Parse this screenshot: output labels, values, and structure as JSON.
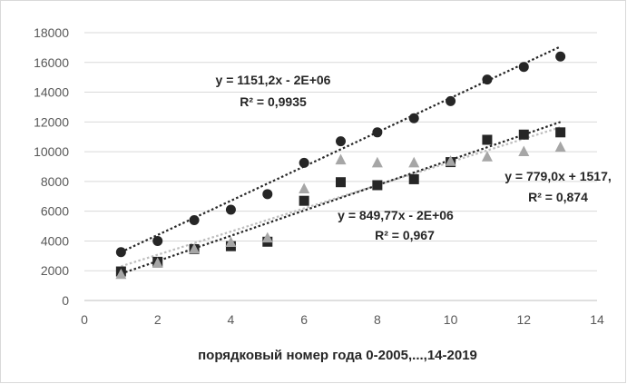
{
  "chart_data": {
    "type": "scatter",
    "title": "",
    "xlabel": "порядковый  номер года 0-2005,...,14-2019",
    "ylabel": "",
    "xlim": [
      0,
      14
    ],
    "ylim": [
      0,
      18000
    ],
    "x_ticks": [
      "0",
      "2",
      "4",
      "6",
      "8",
      "10",
      "12",
      "14"
    ],
    "y_ticks": [
      "0",
      "2000",
      "4000",
      "6000",
      "8000",
      "10000",
      "12000",
      "14000",
      "16000",
      "18000"
    ],
    "grid": "horizontal",
    "legend": "none",
    "series": [
      {
        "marker": "circle",
        "color": "#262626",
        "x": [
          1,
          2,
          3,
          4,
          5,
          6,
          7,
          8,
          9,
          10,
          11,
          12,
          13
        ],
        "y": [
          3250,
          4000,
          5400,
          6100,
          7150,
          9250,
          10700,
          11300,
          12250,
          13400,
          14850,
          15700,
          16400
        ],
        "trendline": {
          "slope": 1151.2,
          "intercept": 2100,
          "equation": "y = 1151,2x - 2E+06",
          "r2": "R² = 0,9935"
        }
      },
      {
        "marker": "square",
        "color": "#262626",
        "x": [
          1,
          2,
          3,
          4,
          5,
          6,
          7,
          8,
          9,
          10,
          11,
          12,
          13
        ],
        "y": [
          1950,
          2600,
          3450,
          3650,
          3950,
          6700,
          7950,
          7750,
          8150,
          9300,
          10800,
          11150,
          11300
        ],
        "trendline": {
          "slope": 849.77,
          "intercept": 950,
          "equation": "y = 849,77x - 2E+06",
          "r2": "R² = 0,967"
        }
      },
      {
        "marker": "triangle",
        "color": "#a6a6a6",
        "x": [
          1,
          2,
          3,
          4,
          5,
          6,
          7,
          8,
          9,
          10,
          11,
          12,
          13
        ],
        "y": [
          1750,
          2500,
          3450,
          3900,
          4200,
          7500,
          9450,
          9250,
          9250,
          9350,
          9650,
          10000,
          10300
        ],
        "trendline": {
          "slope": 779.0,
          "intercept": 1517,
          "equation": "y = 779,0x + 1517,",
          "r2": "R² = 0,874"
        }
      }
    ]
  }
}
